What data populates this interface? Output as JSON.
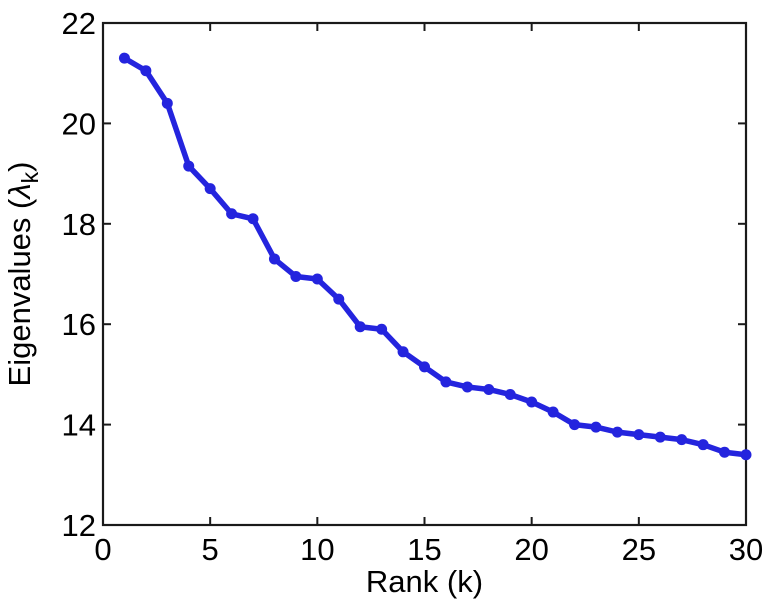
{
  "figure": {
    "background": "#ffffff",
    "axes_color": "#1a1a1a"
  },
  "chart_data": {
    "type": "line",
    "title": "",
    "xlabel": "Rank (k)",
    "ylabel": {
      "prefix": "Eigenvalues (",
      "symbol": "λ",
      "subscript": "k",
      "suffix": ")"
    },
    "x": [
      1,
      2,
      3,
      4,
      5,
      6,
      7,
      8,
      9,
      10,
      11,
      12,
      13,
      14,
      15,
      16,
      17,
      18,
      19,
      20,
      21,
      22,
      23,
      24,
      25,
      26,
      27,
      28,
      29,
      30
    ],
    "series": [
      {
        "name": "eigenvalues",
        "color": "#2424DE",
        "values": [
          21.3,
          21.05,
          20.4,
          19.15,
          18.7,
          18.2,
          18.1,
          17.3,
          16.95,
          16.9,
          16.5,
          15.95,
          15.9,
          15.45,
          15.15,
          14.85,
          14.75,
          14.7,
          14.6,
          14.45,
          14.25,
          14.0,
          13.95,
          13.85,
          13.8,
          13.75,
          13.7,
          13.6,
          13.45,
          13.4
        ]
      }
    ],
    "xlim": [
      0,
      30
    ],
    "ylim": [
      12,
      22
    ],
    "xticks": [
      0,
      5,
      10,
      15,
      20,
      25,
      30
    ],
    "yticks": [
      12,
      14,
      16,
      18,
      20,
      22
    ],
    "grid": false,
    "legend": "none",
    "marker": "circle",
    "line_width": 5.5,
    "marker_size": 5.5
  }
}
